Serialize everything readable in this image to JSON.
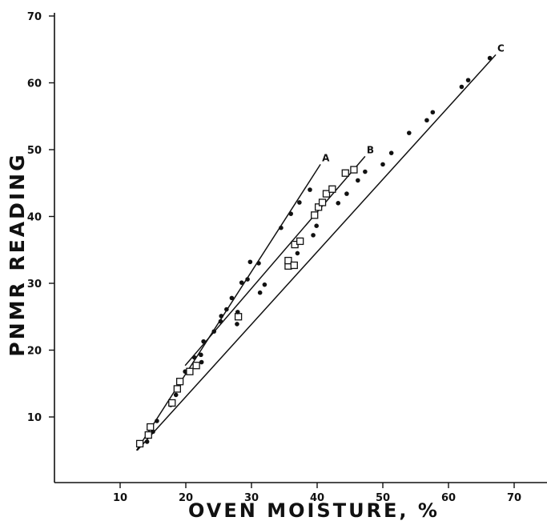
{
  "chart_data": {
    "type": "scatter",
    "xlabel": "OVEN MOISTURE, %",
    "ylabel": "PNMR READING",
    "xlim": [
      0,
      75
    ],
    "ylim": [
      0,
      70
    ],
    "x_ticks": [
      10,
      20,
      30,
      40,
      50,
      60,
      70
    ],
    "y_ticks": [
      10,
      20,
      30,
      40,
      50,
      60,
      70
    ],
    "grid": false,
    "series": [
      {
        "marker": "dot",
        "points": [
          [
            14.1,
            6.3
          ],
          [
            15,
            7.8
          ],
          [
            15.6,
            9.4
          ],
          [
            17.7,
            11.8
          ],
          [
            18.5,
            13.3
          ],
          [
            19.9,
            16.8
          ],
          [
            21.3,
            18.9
          ],
          [
            22.3,
            19.3
          ],
          [
            22.7,
            21.3
          ],
          [
            24.3,
            22.8
          ],
          [
            25.3,
            24.3
          ],
          [
            25.4,
            25.1
          ],
          [
            26.2,
            26.1
          ],
          [
            27,
            27.8
          ],
          [
            28.5,
            30.1
          ],
          [
            29.4,
            30.6
          ],
          [
            29.8,
            33.2
          ],
          [
            31.1,
            33
          ],
          [
            34.5,
            38.3
          ],
          [
            36,
            40.4
          ],
          [
            37.3,
            42.1
          ],
          [
            38.9,
            44
          ]
        ]
      },
      {
        "marker": "square",
        "points": [
          [
            13,
            6
          ],
          [
            14.3,
            7.3
          ],
          [
            14.6,
            8.5
          ],
          [
            17.9,
            12.1
          ],
          [
            18.7,
            14.2
          ],
          [
            19.1,
            15.3
          ],
          [
            20.6,
            16.8
          ],
          [
            21.6,
            17.7
          ],
          [
            28,
            25
          ],
          [
            35.6,
            32.6
          ],
          [
            35.6,
            33.4
          ],
          [
            36.5,
            32.7
          ],
          [
            36.6,
            35.8
          ],
          [
            37.4,
            36.3
          ],
          [
            39.6,
            40.2
          ],
          [
            40.2,
            41.4
          ],
          [
            40.8,
            42.1
          ],
          [
            41.4,
            43.4
          ],
          [
            42.3,
            44.1
          ],
          [
            44.3,
            46.5
          ],
          [
            45.6,
            47
          ]
        ]
      },
      {
        "marker": "dot",
        "points": [
          [
            22.4,
            18.2
          ],
          [
            27.8,
            23.9
          ],
          [
            27.9,
            25.7
          ],
          [
            31.3,
            28.6
          ],
          [
            32,
            29.8
          ],
          [
            37,
            34.5
          ],
          [
            39.4,
            37.2
          ],
          [
            39.9,
            38.6
          ],
          [
            43.2,
            42
          ],
          [
            44.5,
            43.4
          ],
          [
            46.2,
            45.4
          ],
          [
            47.3,
            46.7
          ],
          [
            50,
            47.8
          ],
          [
            51.3,
            49.5
          ],
          [
            54,
            52.5
          ],
          [
            56.7,
            54.4
          ],
          [
            57.6,
            55.6
          ],
          [
            62,
            59.4
          ],
          [
            63,
            60.4
          ],
          [
            66.3,
            63.7
          ]
        ]
      }
    ],
    "fit_lines": [
      {
        "label": "A",
        "x": [
          12.5,
          40.5
        ],
        "y": [
          5,
          47.8
        ]
      },
      {
        "label": "B",
        "x": [
          19.9,
          47.3
        ],
        "y": [
          17.7,
          49
        ]
      },
      {
        "label": "C",
        "x": [
          12.6,
          67.2
        ],
        "y": [
          5,
          64.2
        ]
      }
    ]
  }
}
